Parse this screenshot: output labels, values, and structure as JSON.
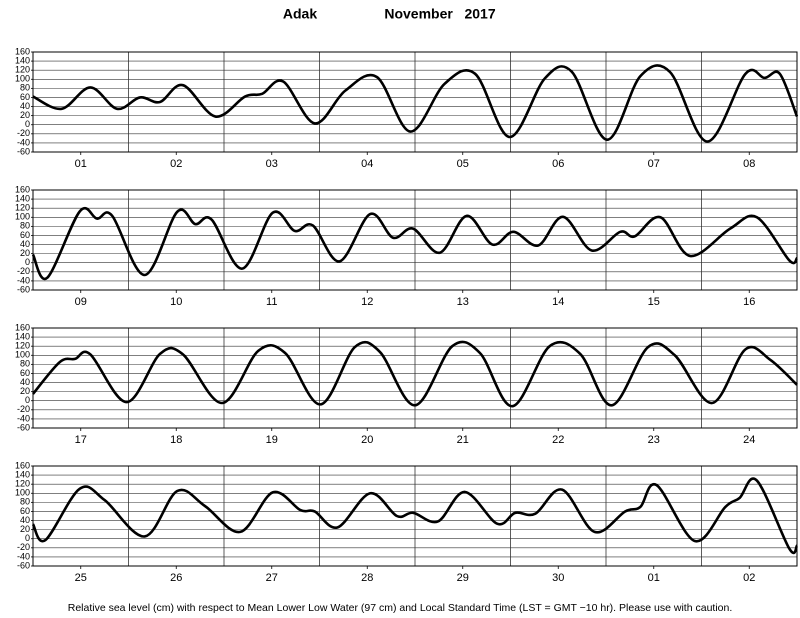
{
  "title": "Adak",
  "month": "November   2017",
  "footer": "Relative sea level (cm) with respect to Mean Lower Low Water (97 cm) and Local Standard Time (LST = GMT −10 hr). Please use with caution.",
  "chart_data": [
    {
      "type": "line",
      "categories": [
        "01",
        "02",
        "03",
        "04",
        "05",
        "06",
        "07",
        "08"
      ],
      "x": [
        0,
        0.3,
        0.6,
        0.88,
        1.12,
        1.33,
        1.57,
        1.91,
        2.22,
        2.4,
        2.62,
        2.95,
        3.27,
        3.6,
        3.95,
        4.31,
        4.63,
        4.99,
        5.36,
        5.64,
        6.01,
        6.36,
        6.67,
        7.06,
        7.46,
        7.66,
        7.82,
        8
      ],
      "values": [
        62,
        35,
        82,
        35,
        60,
        50,
        87,
        18,
        62,
        68,
        95,
        3,
        75,
        105,
        -15,
        90,
        112,
        -27,
        102,
        117,
        -33,
        107,
        116,
        -37,
        112,
        103,
        112,
        18
      ],
      "color": "#000000",
      "xlim": [
        0,
        8
      ],
      "ylim": [
        -60,
        160
      ],
      "yticks": [
        -60,
        -40,
        -20,
        0,
        20,
        40,
        60,
        80,
        100,
        120,
        140,
        160
      ],
      "grid": true
    },
    {
      "type": "line",
      "categories": [
        "09",
        "10",
        "11",
        "12",
        "13",
        "14",
        "15",
        "16"
      ],
      "x": [
        0,
        0.15,
        0.49,
        0.67,
        0.83,
        1.17,
        1.51,
        1.7,
        1.87,
        2.19,
        2.51,
        2.74,
        2.93,
        3.21,
        3.53,
        3.77,
        3.98,
        4.26,
        4.54,
        4.81,
        5.03,
        5.29,
        5.55,
        5.85,
        6.15,
        6.3,
        6.57,
        6.88,
        7.3,
        7.58,
        7.92,
        8
      ],
      "values": [
        18,
        -33,
        113,
        97,
        103,
        -27,
        112,
        85,
        95,
        -13,
        110,
        70,
        82,
        3,
        107,
        55,
        75,
        22,
        103,
        40,
        68,
        38,
        101,
        27,
        68,
        58,
        100,
        15,
        75,
        100,
        5,
        10
      ],
      "color": "#000000",
      "xlim": [
        0,
        8
      ],
      "ylim": [
        -60,
        160
      ],
      "yticks": [
        -60,
        -40,
        -20,
        0,
        20,
        40,
        60,
        80,
        100,
        120,
        140,
        160
      ],
      "grid": true
    },
    {
      "type": "line",
      "categories": [
        "17",
        "18",
        "19",
        "20",
        "21",
        "22",
        "23",
        "24"
      ],
      "x": [
        0,
        0.28,
        0.44,
        0.6,
        0.98,
        1.33,
        1.57,
        1.98,
        2.36,
        2.64,
        3.01,
        3.37,
        3.63,
        4.0,
        4.39,
        4.68,
        5.02,
        5.41,
        5.73,
        6.06,
        6.44,
        6.72,
        7.11,
        7.46,
        7.72,
        8
      ],
      "values": [
        15,
        85,
        92,
        102,
        -3,
        103,
        102,
        -5,
        110,
        105,
        -8,
        118,
        108,
        -10,
        120,
        105,
        -12,
        120,
        103,
        -10,
        118,
        100,
        -5,
        113,
        90,
        35
      ],
      "color": "#000000",
      "xlim": [
        0,
        8
      ],
      "ylim": [
        -60,
        160
      ],
      "yticks": [
        -60,
        -40,
        -20,
        0,
        20,
        40,
        60,
        80,
        100,
        120,
        140,
        160
      ],
      "grid": true
    },
    {
      "type": "line",
      "categories": [
        "25",
        "26",
        "27",
        "28",
        "29",
        "30",
        "01",
        "02"
      ],
      "x": [
        0,
        0.13,
        0.49,
        0.75,
        1.17,
        1.51,
        1.8,
        2.17,
        2.51,
        2.8,
        2.95,
        3.19,
        3.53,
        3.81,
        3.98,
        4.24,
        4.52,
        4.86,
        5.05,
        5.26,
        5.54,
        5.88,
        6.2,
        6.36,
        6.53,
        6.93,
        7.25,
        7.4,
        7.58,
        7.92,
        8
      ],
      "values": [
        32,
        -3,
        110,
        85,
        5,
        105,
        72,
        15,
        102,
        63,
        60,
        25,
        100,
        50,
        57,
        38,
        103,
        33,
        57,
        55,
        108,
        15,
        60,
        70,
        118,
        -5,
        70,
        90,
        128,
        -22,
        -15
      ],
      "color": "#000000",
      "xlim": [
        0,
        8
      ],
      "ylim": [
        -60,
        160
      ],
      "yticks": [
        -60,
        -40,
        -20,
        0,
        20,
        40,
        60,
        80,
        100,
        120,
        140,
        160
      ],
      "grid": true
    }
  ]
}
